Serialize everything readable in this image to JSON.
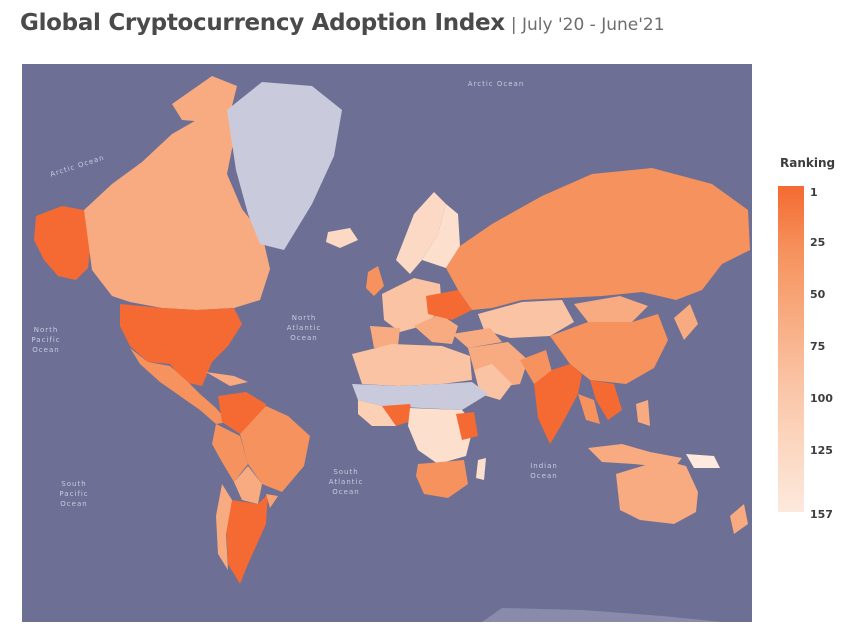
{
  "header": {
    "title": "Global Cryptocurrency Adoption Index",
    "subtitle": "| July '20 - June'21"
  },
  "legend": {
    "title": "Ranking",
    "ticks": [
      "1",
      "25",
      "50",
      "75",
      "100",
      "125",
      "157"
    ]
  },
  "oceans": {
    "arctic_top": "Arctic Ocean",
    "arctic_left": "Arctic Ocean",
    "north_atlantic": [
      "North",
      "Atlantic",
      "Ocean"
    ],
    "north_pacific": [
      "North",
      "Pacific",
      "Ocean"
    ],
    "south_pacific": [
      "South",
      "Pacific",
      "Ocean"
    ],
    "south_atlantic": [
      "South",
      "Atlantic",
      "Ocean"
    ],
    "indian": [
      "Indian",
      "Ocean"
    ]
  },
  "colors": {
    "ocean": "#6e6f94",
    "no_data": "#c9cbdc",
    "rank_top": "#f46a32",
    "rank_mid": "#f8a273",
    "rank_low": "#fde6d8"
  }
}
